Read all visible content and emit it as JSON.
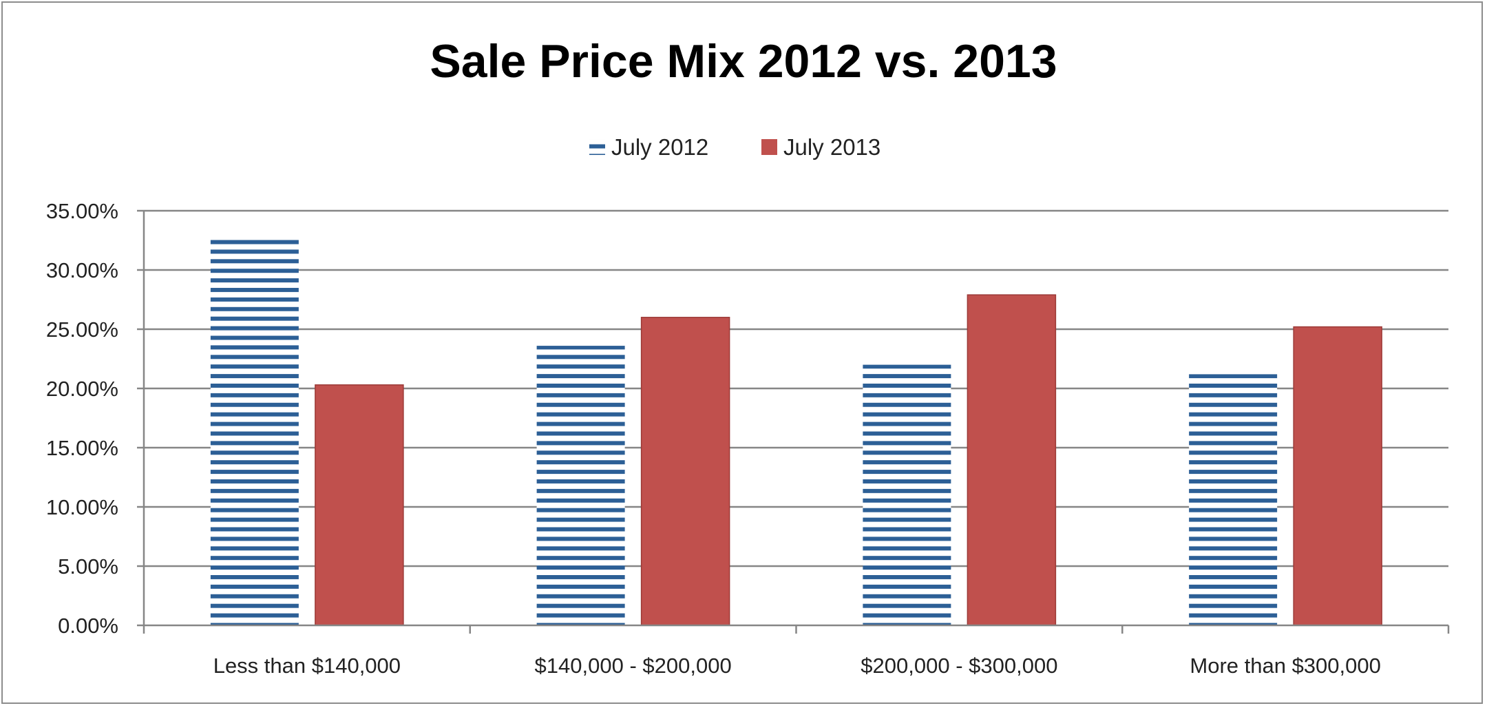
{
  "chart_data": {
    "type": "bar",
    "title": "Sale Price Mix 2012 vs. 2013",
    "xlabel": "",
    "ylabel": "",
    "categories": [
      "Less than $140,000",
      "$140,000 - $200,000",
      "$200,000 - $300,000",
      "More than $300,000"
    ],
    "series": [
      {
        "name": "July 2012",
        "values": [
          32.6,
          23.6,
          22.0,
          21.2
        ],
        "color": "#2c5f96",
        "pattern": "horizontal-stripes"
      },
      {
        "name": "July 2013",
        "values": [
          20.3,
          26.0,
          27.9,
          25.2
        ],
        "color": "#c0504d",
        "pattern": "solid"
      }
    ],
    "ylim": [
      0,
      35
    ],
    "yticks": [
      0,
      5,
      10,
      15,
      20,
      25,
      30,
      35
    ],
    "ytick_labels": [
      "0.00%",
      "5.00%",
      "10.00%",
      "15.00%",
      "20.00%",
      "25.00%",
      "30.00%",
      "35.00%"
    ],
    "grid": true,
    "legend_position": "top"
  }
}
